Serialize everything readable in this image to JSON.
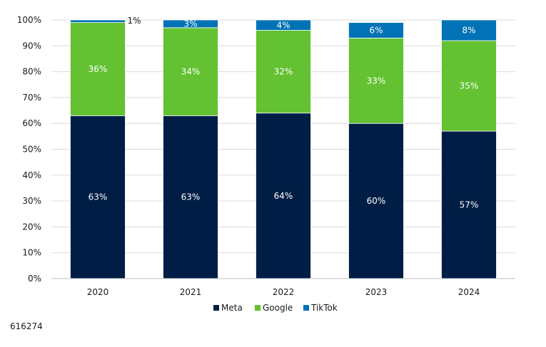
{
  "chart_data": {
    "type": "bar",
    "stacked": true,
    "percent": true,
    "title": "",
    "xlabel": "",
    "ylabel": "",
    "ylim": [
      0,
      100
    ],
    "yticks": [
      "0%",
      "10%",
      "20%",
      "30%",
      "40%",
      "50%",
      "60%",
      "70%",
      "80%",
      "90%",
      "100%"
    ],
    "categories": [
      "2020",
      "2021",
      "2022",
      "2023",
      "2024"
    ],
    "series": [
      {
        "name": "Meta",
        "color": "#001e45",
        "values": [
          63,
          63,
          64,
          60,
          57
        ],
        "labels": [
          "63%",
          "63%",
          "64%",
          "60%",
          "57%"
        ]
      },
      {
        "name": "Google",
        "color": "#63c132",
        "values": [
          36,
          34,
          32,
          33,
          35
        ],
        "labels": [
          "36%",
          "34%",
          "32%",
          "33%",
          "35%"
        ]
      },
      {
        "name": "TikTok",
        "color": "#0072b5",
        "values": [
          1,
          3,
          4,
          6,
          8
        ],
        "labels": [
          "1%",
          "3%",
          "4%",
          "6%",
          "8%"
        ]
      }
    ],
    "legend": [
      "Meta",
      "Google",
      "TikTok"
    ],
    "legend_position": "bottom-center",
    "grid": true
  },
  "footnote": "616274"
}
